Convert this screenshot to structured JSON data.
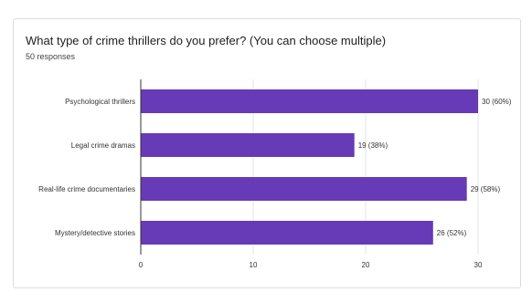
{
  "question": {
    "title": "What type of crime thrillers do you prefer? (You can choose multiple)",
    "responses": "50 responses"
  },
  "colors": {
    "bar": "#673ab7",
    "grid": "#e3e3e3",
    "axis": "#333333"
  },
  "chart_data": {
    "type": "bar",
    "orientation": "horizontal",
    "categories": [
      "Psychological thrillers",
      "Legal crime dramas",
      "Real-life crime documentaries",
      "Mystery/detective stories"
    ],
    "values": [
      30,
      19,
      29,
      26
    ],
    "data_labels": [
      "30 (60%)",
      "19 (38%)",
      "29 (58%)",
      "26 (52%)"
    ],
    "xlim": [
      0,
      30
    ],
    "x_ticks": [
      "0",
      "10",
      "20",
      "30"
    ],
    "grid": true
  }
}
